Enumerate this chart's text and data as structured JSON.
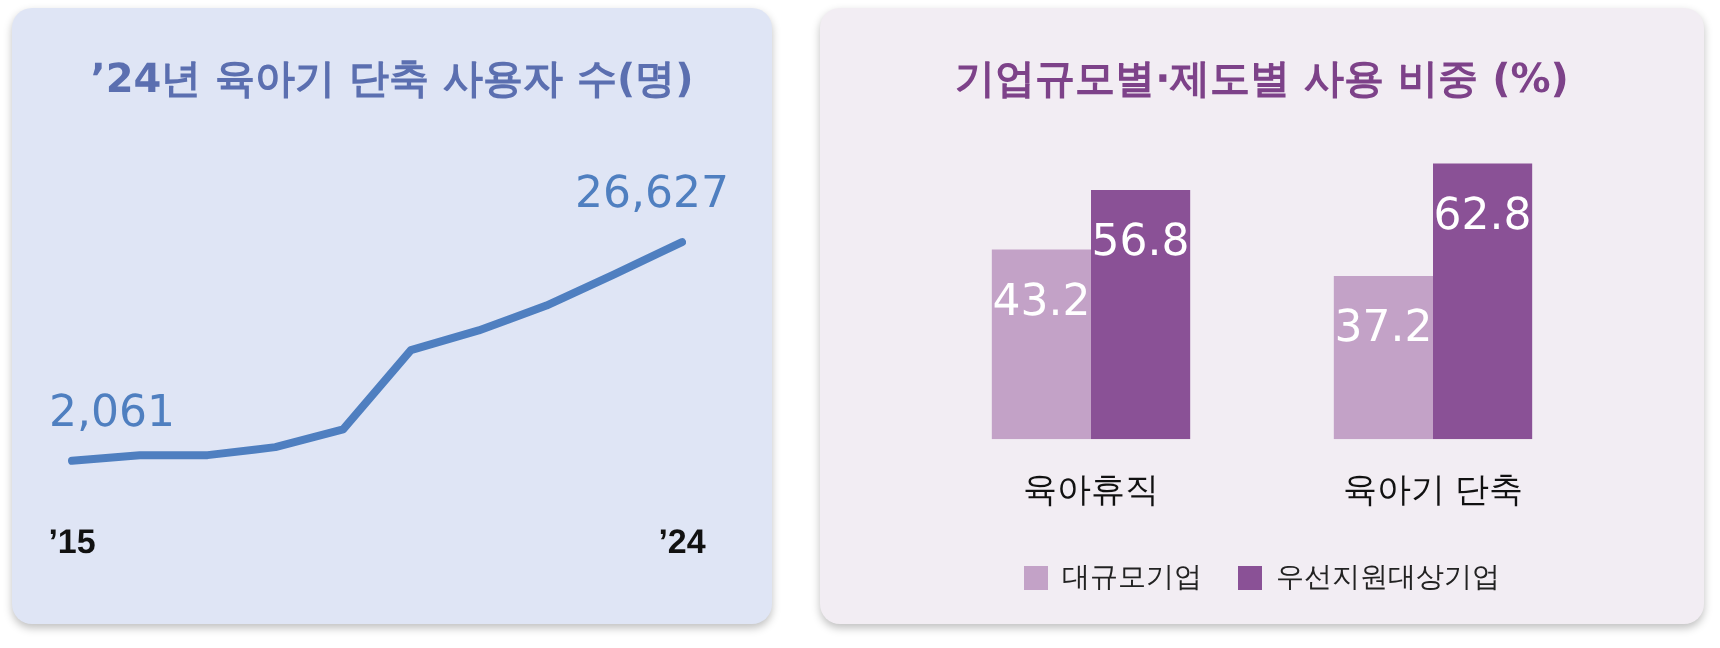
{
  "chart_data": [
    {
      "type": "line",
      "title": "’24년 육아기 단축 사용자 수(명)",
      "categories": [
        "’15",
        null,
        null,
        null,
        null,
        null,
        null,
        null,
        null,
        "’24"
      ],
      "color": "#4f7fc0",
      "values": [
        2061,
        2700,
        2700,
        3600,
        5600,
        14500,
        16700,
        19500,
        23000,
        26627
      ],
      "value_labels": [
        "2,061",
        null,
        null,
        null,
        null,
        null,
        null,
        null,
        null,
        "26,627"
      ],
      "marker": "none"
    },
    {
      "type": "bar",
      "title": "기업규모별·제도별 사용 비중 (%)",
      "categories": [
        "육아휴직",
        "육아기 단축"
      ],
      "series": [
        {
          "name": "대규모기업",
          "color": "#c3a2c7",
          "values": [
            43.2,
            37.2
          ]
        },
        {
          "name": "우선지원대상기업",
          "color": "#8a5196",
          "values": [
            56.8,
            62.8
          ]
        }
      ],
      "data_labels": true,
      "legend": "bottom"
    }
  ]
}
